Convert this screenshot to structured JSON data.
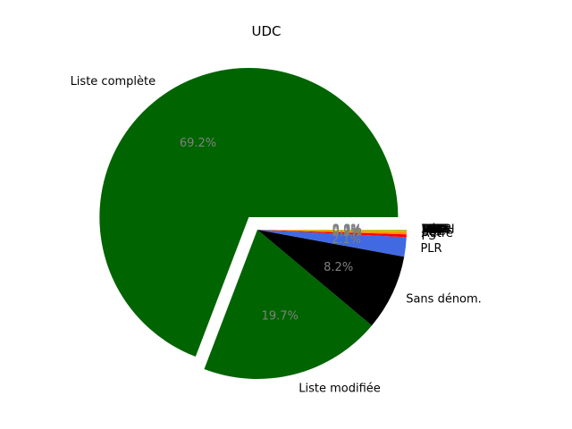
{
  "chart_data": {
    "type": "pie",
    "title": "UDC",
    "start_angle_deg": 0,
    "direction": "counterclockwise",
    "slices": [
      {
        "label": "Liste complète",
        "value": 69.2,
        "pct_label": "69.2%",
        "color": "#006400",
        "explode": true
      },
      {
        "label": "Liste modifiée",
        "value": 19.7,
        "pct_label": "19.7%",
        "color": "#006400",
        "explode": false
      },
      {
        "label": "Sans dénom.",
        "value": 8.2,
        "pct_label": "8.2%",
        "color": "#000000",
        "explode": false
      },
      {
        "label": "PLR",
        "value": 2.1,
        "pct_label": "2.1%",
        "color": "#4169e1",
        "explode": false
      },
      {
        "label": "PS",
        "value": 0.3,
        "pct_label": "0.3%",
        "color": "#ff0000",
        "explode": false
      },
      {
        "label": "Autre",
        "value": 0.2,
        "pct_label": "0.2%",
        "color": "#ff8c00",
        "explode": false
      },
      {
        "label": "PDC",
        "value": 0.2,
        "pct_label": "0.2%",
        "color": "#ffa500",
        "explode": false
      },
      {
        "label": "PES",
        "value": 0.1,
        "pct_label": "0.1%",
        "color": "#9acd32",
        "explode": false
      },
      {
        "label": "PEV",
        "value": 0.0,
        "pct_label": "0.0%",
        "color": "#ffd700",
        "explode": false
      },
      {
        "label": "PBD",
        "value": 0.0,
        "pct_label": "0.0%",
        "color": "#ffff00",
        "explode": false
      },
      {
        "label": "PST",
        "value": 0.0,
        "pct_label": "0.0%",
        "color": "#8b0000",
        "explode": false
      },
      {
        "label": "Verts",
        "value": 0.0,
        "pct_label": "0.0%",
        "color": "#228b22",
        "explode": false
      },
      {
        "label": "Lega",
        "value": 0.0,
        "pct_label": "0.0%",
        "color": "#add8e6",
        "explode": false
      },
      {
        "label": "MCR",
        "value": 0.0,
        "pct_label": "0.0%",
        "color": "#a9a9a9",
        "explode": false
      },
      {
        "label": "Sol.",
        "value": 0.0,
        "pct_label": "0.0%",
        "color": "#ff1493",
        "explode": false
      },
      {
        "label": "UDF",
        "value": 0.0,
        "pct_label": "0.0%",
        "color": "#8b4513",
        "explode": false
      },
      {
        "label": "PVL",
        "value": 0.0,
        "pct_label": "0.0%",
        "color": "#90ee90",
        "explode": false
      },
      {
        "label": "FRAP",
        "value": 0.0,
        "pct_label": "0.0%",
        "color": "#b22222",
        "explode": false
      },
      {
        "label": "POCH",
        "value": 0.0,
        "pct_label": "0.0%",
        "color": "#dc143c",
        "explode": false
      },
      {
        "label": "AVF",
        "value": 0.0,
        "pct_label": "0.0%",
        "color": "#556b2f",
        "explode": false
      },
      {
        "label": "DS",
        "value": 0.0,
        "pct_label": "0.0%",
        "color": "#4b0082",
        "explode": false
      },
      {
        "label": "Rép.",
        "value": 0.0,
        "pct_label": "0.0%",
        "color": "#696969",
        "explode": false
      },
      {
        "label": "PSL",
        "value": 0.0,
        "pct_label": "0.0%",
        "color": "#800000",
        "explode": false
      },
      {
        "label": "DEM",
        "value": 0.0,
        "pct_label": "0.0%",
        "color": "#00ced1",
        "explode": false
      },
      {
        "label": "Sans",
        "value": 0.0,
        "pct_label": "0.0%",
        "color": "#c0c0c0",
        "explode": false
      },
      {
        "label": "Div.",
        "value": 0.0,
        "pct_label": "0.0%",
        "color": "#d2b48c",
        "explode": false
      }
    ]
  }
}
